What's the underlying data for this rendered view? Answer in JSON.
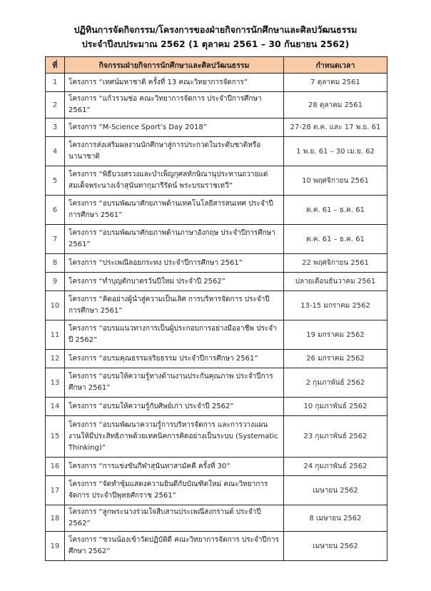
{
  "title": {
    "line1": "ปฏิทินการจัดกิจกรรม/โครงการของฝ่ายกิจการนักศึกษาและศิลปวัฒนธรรม",
    "line2": "ประจำปีงบประมาณ 2562 (1 ตุลาคม 2561 – 30 กันยายน 2562)"
  },
  "table": {
    "header_color": "#f8caa5",
    "columns": [
      "ที่",
      "กิจกรรมฝ่ายกิจการนักศึกษาและศิลปวัฒนธรรม",
      "กำหนดเวลา"
    ],
    "rows": [
      {
        "no": "1",
        "activity": "โครงการ “เทศน์มหาชาติ ครั้งที่ 13 คณะวิทยาการจัดการ”",
        "date": "7 ตุลาคม 2561"
      },
      {
        "no": "2",
        "activity": "โครงการ “แก้วรวมช่อ คณะวิทยาการจัดการ ประจำปีการศึกษา 2561”",
        "date": "28 ตุลาคม 2561"
      },
      {
        "no": "3",
        "activity": "โครงการ “M-Science Sport’s Day 2018”",
        "date": "27-28 ต.ค. และ 17 พ.ย. 61"
      },
      {
        "no": "4",
        "activity": "โครงการส่งเสริมผลงานนักศึกษาสู่การประกวดในระดับชาติหรือนานาชาติ",
        "date": "1 พ.ย. 61 – 30 เม.ย. 62"
      },
      {
        "no": "5",
        "activity": "โครงการ “พิธีบวงสรวงและบำเพ็ญกุศลทักษิณานุประทานถวายแด่สมเด็จพระนางเจ้าสุนันทากุมารีรัตน์ พระบรมราชเทวี”",
        "date": "10 พฤศจิกายน 2561"
      },
      {
        "no": "6",
        "activity": "โครงการ “อบรมพัฒนาศักยภาพด้านเทคโนโลยีสารสนเทศ ประจำปีการศึกษา 2561”",
        "date": "ต.ค. 61 – ธ.ค. 61"
      },
      {
        "no": "7",
        "activity": "โครงการ “อบรมพัฒนาศักยภาพด้านภาษาอังกฤษ ประจำปีการศึกษา 2561”",
        "date": "ต.ค. 61 – ธ.ค. 61"
      },
      {
        "no": "8",
        "activity": "โครงการ “ประเพณีลอยกระทง ประจำปีการศึกษา 2561”",
        "date": "22 พฤศจิกายน 2561"
      },
      {
        "no": "9",
        "activity": "โครงการ “ทำบุญตักบาตรวันปีใหม่ ประจำปี 2562”",
        "date": "ปลายเดือนธันวาคม 2561"
      },
      {
        "no": "10",
        "activity": "โครงการ “คิดอย่างผู้นำสู่ความเป็นเลิศ การบริหารจัดการ ประจำปีการศึกษา 2561”",
        "date": "13-15 มกราคม 2562"
      },
      {
        "no": "11",
        "activity": "โครงการ “อบรมแนวทางการเป็นผู้ประกอบการอย่างมืออาชีพ ประจำปี 2562”",
        "date": "19 มกราคม 2562"
      },
      {
        "no": "12",
        "activity": "โครงการ “อบรมคุณธรรมจริยธรรม ประจำปีการศึกษา 2561”",
        "date": "26 มกราคม 2562"
      },
      {
        "no": "13",
        "activity": "โครงการ “อบรมให้ความรู้ทางด้านงานประกันคุณภาพ ประจำปีการศึกษา 2561”",
        "date": "2 กุมภาพันธ์ 2562"
      },
      {
        "no": "14",
        "activity": "โครงการ “อบรมให้ความรู้กับศิษย์เก่า ประจำปี 2562”",
        "date": "10 กุมภาพันธ์ 2562"
      },
      {
        "no": "15",
        "activity": "โครงการ “อบรมพัฒนาความรู้การบริหารจัดการ และการวางแผนงานให้มีประสิทธิภาพด้วยเทคนิคการคิดอย่างเป็นระบบ (Systematic Thinking)”",
        "date": "23 กุมภาพันธ์ 2562"
      },
      {
        "no": "16",
        "activity": "โครงการ “การแข่งขันกีฬาสุนันทาสามัคคี ครั้งที่ 30”",
        "date": "24 กุมภาพันธ์ 2562"
      },
      {
        "no": "17",
        "activity": "โครงการ “จัดทำซุ้มแสดงความยินดีกับบัณฑิตใหม่ คณะวิทยาการจัดการ ประจำปีพุทธศักราช 2561”",
        "date": "เมษายน 2562"
      },
      {
        "no": "18",
        "activity": "โครงการ “ลูกพระนางร่วมใจสืบสานประเพณีสงกรานต์ ประจำปี 2562”",
        "date": "8 เมษายน 2562"
      },
      {
        "no": "19",
        "activity": "โครงการ “ชวนน้องเข้าวัดปฏิบัติดี คณะวิทยาการจัดการ ประจำปีการศึกษา 2562”",
        "date": "เมษายน 2562"
      }
    ]
  }
}
